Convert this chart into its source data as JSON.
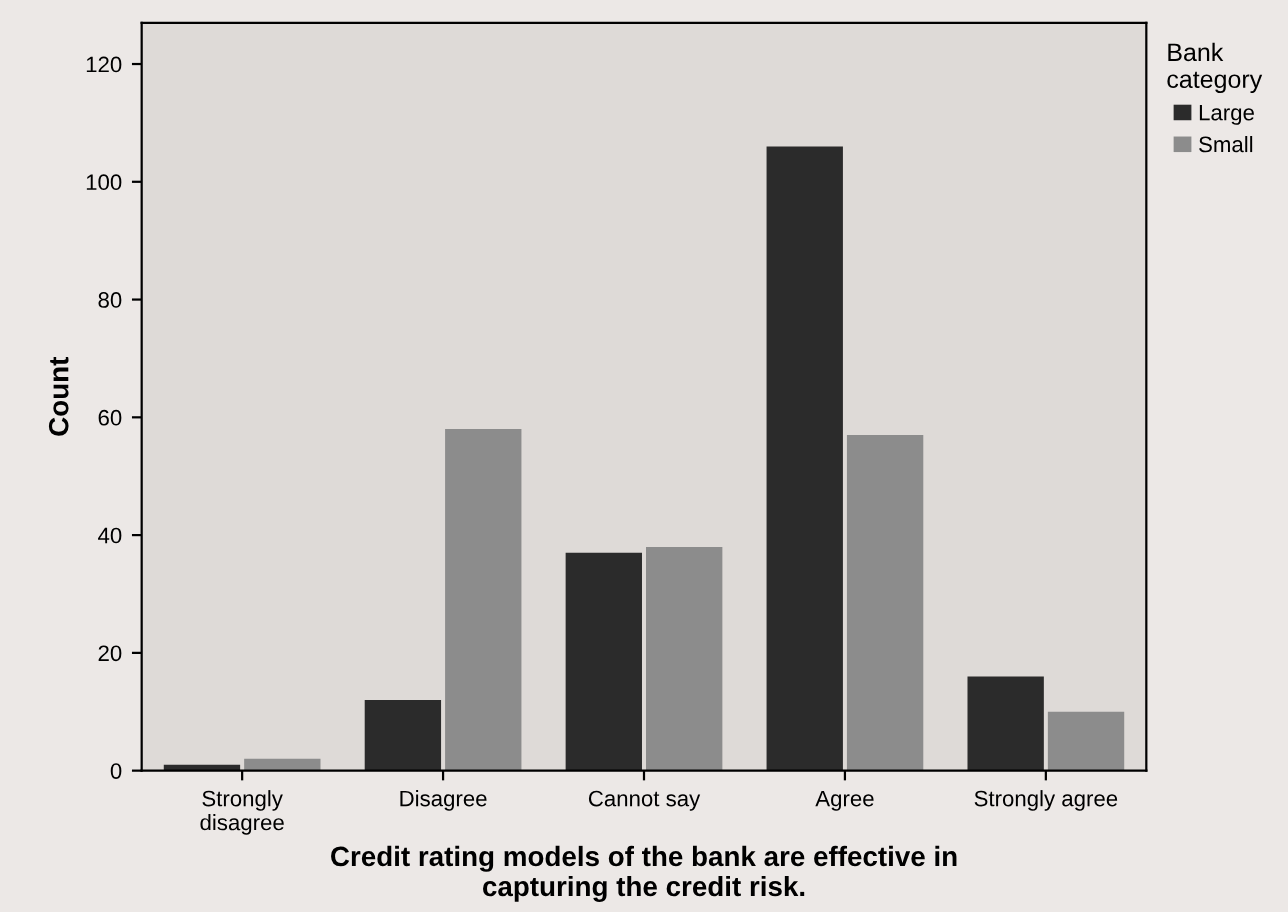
{
  "chart_data": {
    "type": "bar",
    "categories": [
      "Strongly\ndisagree",
      "Disagree",
      "Cannot say",
      "Agree",
      "Strongly agree"
    ],
    "series": [
      {
        "name": "Large",
        "color": "#2b2b2b",
        "values": [
          1,
          12,
          37,
          106,
          16
        ]
      },
      {
        "name": "Small",
        "color": "#8c8c8c",
        "values": [
          2,
          58,
          38,
          57,
          10
        ]
      }
    ],
    "xlabel": "Credit rating models of the bank are effective in\ncapturing the credit risk.",
    "ylabel": "Count",
    "legend_title": "Bank\ncategory",
    "legend": "top right",
    "ylim": [
      0,
      127
    ],
    "yticks": [
      0,
      20,
      40,
      60,
      80,
      100,
      120
    ],
    "grid": false
  }
}
